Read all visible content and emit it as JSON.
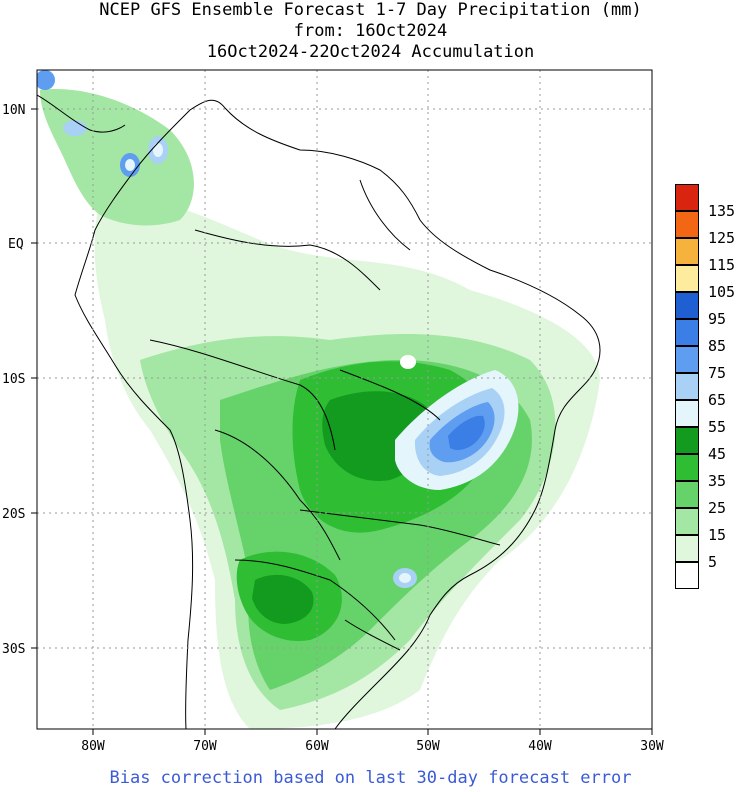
{
  "title": {
    "line1": "NCEP GFS Ensemble Forecast 1-7 Day Precipitation (mm)",
    "line2": "from: 16Oct2024",
    "line3": "16Oct2024-22Oct2024 Accumulation"
  },
  "footer": "Bias correction based on last 30-day forecast error",
  "axes": {
    "lat_labels": [
      "10N",
      "EQ",
      "10S",
      "20S",
      "30S"
    ],
    "lon_labels": [
      "80W",
      "70W",
      "60W",
      "50W",
      "40W",
      "30W"
    ]
  },
  "legend": {
    "labels": [
      "135",
      "125",
      "115",
      "105",
      "95",
      "85",
      "75",
      "65",
      "55",
      "45",
      "35",
      "25",
      "15",
      "5"
    ],
    "colors": [
      "#d9250f",
      "#f26614",
      "#f5b23c",
      "#fdeb9e",
      "#1f5fd1",
      "#3a7ee6",
      "#5e9df0",
      "#a9d1f6",
      "#e4f6fb",
      "#129b1e",
      "#2ebd33",
      "#66d26a",
      "#a4e6a4",
      "#e0f7de",
      "#ffffff"
    ]
  },
  "colors": {
    "map_background": "#ffffff",
    "footer_text": "#3b5bd6",
    "grid": "#999999"
  }
}
